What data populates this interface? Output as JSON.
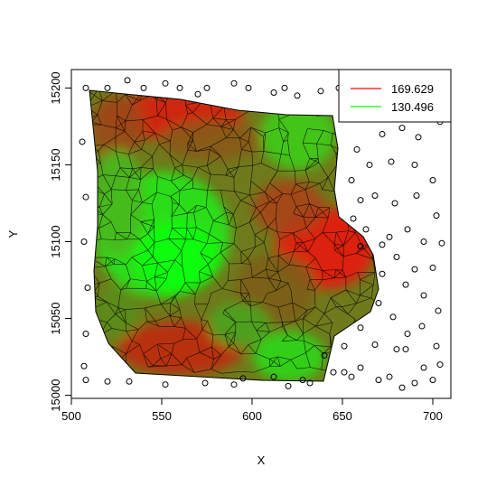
{
  "chart_data": {
    "type": "scatter",
    "title": "",
    "xlabel": "X",
    "ylabel": "Y",
    "xlim": [
      500,
      710
    ],
    "ylim": [
      14998,
      15212
    ],
    "x_ticks": [
      "500",
      "550",
      "600",
      "650",
      "700"
    ],
    "y_ticks": [
      "15000",
      "15050",
      "15100",
      "15150",
      "15200"
    ],
    "legend": {
      "placement": "top-right",
      "entries": [
        {
          "label": "169.629",
          "color": "#ff0000"
        },
        {
          "label": "130.496",
          "color": "#00ff00"
        }
      ]
    },
    "points": [
      [
        508,
        15200
      ],
      [
        520,
        15200
      ],
      [
        531,
        15205
      ],
      [
        540,
        15200
      ],
      [
        552,
        15203
      ],
      [
        560,
        15200
      ],
      [
        570,
        15196
      ],
      [
        575,
        15200
      ],
      [
        590,
        15203
      ],
      [
        598,
        15200
      ],
      [
        612,
        15197
      ],
      [
        618,
        15200
      ],
      [
        625,
        15195
      ],
      [
        638,
        15198
      ],
      [
        648,
        15200
      ],
      [
        660,
        15204
      ],
      [
        672,
        15200
      ],
      [
        685,
        15202
      ],
      [
        700,
        15200
      ],
      [
        706,
        15198
      ],
      [
        506,
        15165
      ],
      [
        508,
        15129
      ],
      [
        507,
        15100
      ],
      [
        509,
        15070
      ],
      [
        508,
        15040
      ],
      [
        507,
        15019
      ],
      [
        508,
        15010
      ],
      [
        520,
        15009
      ],
      [
        532,
        15009
      ],
      [
        552,
        15007
      ],
      [
        574,
        15008
      ],
      [
        590,
        15007
      ],
      [
        620,
        15006
      ],
      [
        632,
        15008
      ],
      [
        655,
        15012
      ],
      [
        670,
        15010
      ],
      [
        683,
        15005
      ],
      [
        690,
        15008
      ],
      [
        700,
        15010
      ],
      [
        704,
        15020
      ],
      [
        695,
        15018
      ],
      [
        685,
        15030
      ],
      [
        676,
        15012
      ],
      [
        660,
        15018
      ],
      [
        651,
        15015
      ],
      [
        672,
        15170
      ],
      [
        683,
        15174
      ],
      [
        692,
        15168
      ],
      [
        704,
        15178
      ],
      [
        658,
        15160
      ],
      [
        665,
        15150
      ],
      [
        677,
        15152
      ],
      [
        690,
        15150
      ],
      [
        700,
        15140
      ],
      [
        655,
        15140
      ],
      [
        660,
        15127
      ],
      [
        668,
        15130
      ],
      [
        679,
        15125
      ],
      [
        691,
        15130
      ],
      [
        702,
        15117
      ],
      [
        656,
        15115
      ],
      [
        663,
        15108
      ],
      [
        676,
        15103
      ],
      [
        686,
        15108
      ],
      [
        695,
        15100
      ],
      [
        705,
        15099
      ],
      [
        660,
        15097
      ],
      [
        672,
        15098
      ],
      [
        680,
        15090
      ],
      [
        690,
        15082
      ],
      [
        700,
        15083
      ],
      [
        672,
        15079
      ],
      [
        685,
        15072
      ],
      [
        695,
        15065
      ],
      [
        703,
        15055
      ],
      [
        670,
        15060
      ],
      [
        678,
        15051
      ],
      [
        686,
        15040
      ],
      [
        694,
        15045
      ],
      [
        680,
        15030
      ],
      [
        702,
        15032
      ],
      [
        668,
        15033
      ],
      [
        660,
        15044
      ],
      [
        651,
        15032
      ],
      [
        640,
        15026
      ],
      [
        645,
        15015
      ],
      [
        628,
        15010
      ],
      [
        612,
        15012
      ],
      [
        595,
        15011
      ]
    ],
    "mesh_color_range": {
      "high": 169.629,
      "low": 130.496
    }
  }
}
